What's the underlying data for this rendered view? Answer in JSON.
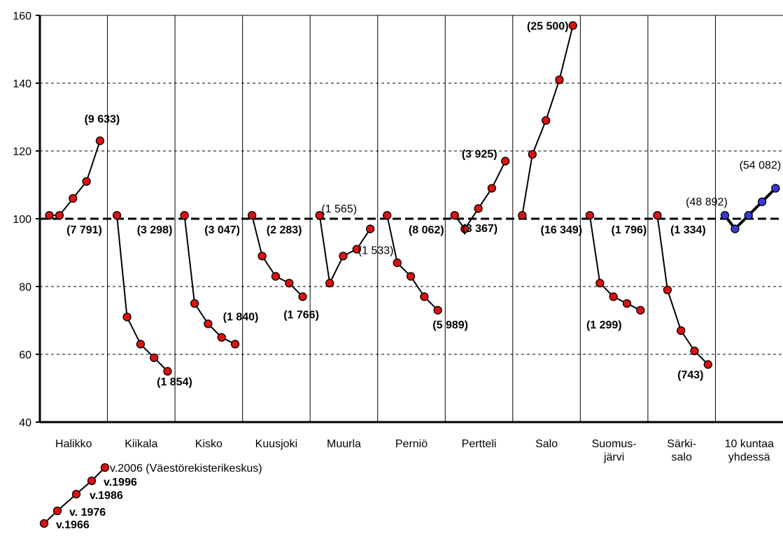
{
  "chart_data": {
    "type": "line",
    "title": "",
    "xlabel": "",
    "ylabel": "",
    "ylim": [
      40,
      160
    ],
    "yticks": [
      40,
      60,
      80,
      100,
      120,
      140,
      160
    ],
    "grid": "horizontal dashed",
    "reference_line": 100,
    "colors": {
      "point": "#dd1111",
      "point_total": "#3a3ad8",
      "line": "#000000",
      "grid": "#000000"
    },
    "x_axis_years": [
      "1966",
      "1976",
      "1986",
      "1996",
      "2006"
    ],
    "categories": [
      {
        "name": "Halikko",
        "values": [
          101,
          101,
          106,
          111,
          123
        ],
        "labels": [
          {
            "text": "(7 791)",
            "bold": true,
            "at": "start"
          },
          {
            "text": "(9 633)",
            "bold": true,
            "at": "end"
          }
        ]
      },
      {
        "name": "Kiikala",
        "values": [
          101,
          71,
          63,
          59,
          55
        ],
        "labels": [
          {
            "text": "(3 298)",
            "bold": true,
            "at": "start"
          },
          {
            "text": "(1 854)",
            "bold": true,
            "at": "end"
          }
        ]
      },
      {
        "name": "Kisko",
        "values": [
          101,
          75,
          69,
          65,
          63
        ],
        "labels": [
          {
            "text": "(3 047)",
            "bold": true,
            "at": "start"
          },
          {
            "text": "(1 840)",
            "bold": true,
            "at": "end"
          }
        ]
      },
      {
        "name": "Kuusjoki",
        "values": [
          101,
          89,
          83,
          81,
          77
        ],
        "labels": [
          {
            "text": "(2 283)",
            "bold": true,
            "at": "start"
          },
          {
            "text": "(1 766)",
            "bold": true,
            "at": "end"
          }
        ]
      },
      {
        "name": "Muurla",
        "values": [
          101,
          81,
          89,
          91,
          97
        ],
        "labels": [
          {
            "text": "(1 565)",
            "bold": false,
            "at": "start"
          },
          {
            "text": "(1 533)",
            "bold": false,
            "at": "end"
          }
        ]
      },
      {
        "name": "Perniö",
        "values": [
          101,
          87,
          83,
          77,
          73
        ],
        "labels": [
          {
            "text": "(8 062)",
            "bold": true,
            "at": "start"
          },
          {
            "text": "(5 989)",
            "bold": true,
            "at": "end"
          }
        ]
      },
      {
        "name": "Pertteli",
        "values": [
          101,
          97,
          103,
          109,
          117
        ],
        "labels": [
          {
            "text": "(3 367)",
            "bold": true,
            "at": "start"
          },
          {
            "text": "(3 925)",
            "bold": true,
            "at": "end"
          }
        ]
      },
      {
        "name": "Salo",
        "values": [
          101,
          119,
          129,
          141,
          157
        ],
        "labels": [
          {
            "text": "(16 349)",
            "bold": true,
            "at": "start"
          },
          {
            "text": "(25 500)",
            "bold": true,
            "at": "end"
          }
        ]
      },
      {
        "name": "Suomus-\njärvi",
        "values": [
          101,
          81,
          77,
          75,
          73
        ],
        "labels": [
          {
            "text": "(1 796)",
            "bold": true,
            "at": "start"
          },
          {
            "text": "(1 299)",
            "bold": true,
            "at": "end"
          }
        ]
      },
      {
        "name": "Särki-\nsalo",
        "values": [
          101,
          79,
          67,
          61,
          57
        ],
        "labels": [
          {
            "text": "(1 334)",
            "bold": true,
            "at": "start"
          },
          {
            "text": "(743)",
            "bold": true,
            "at": "end"
          }
        ]
      },
      {
        "name": "10 kuntaa\nyhdessä",
        "values": [
          101,
          97,
          101,
          105,
          109
        ],
        "total": true,
        "labels": [
          {
            "text": "(48 892)",
            "bold": false,
            "at": "start"
          },
          {
            "text": "(54 082)",
            "bold": false,
            "at": "end"
          }
        ]
      }
    ],
    "legend": [
      {
        "text": "v.1966",
        "bold": true
      },
      {
        "text": "v. 1976",
        "bold": true
      },
      {
        "text": "v.1986",
        "bold": true
      },
      {
        "text": "v.1996",
        "bold": true
      },
      {
        "text": "v.2006 (Väestörekisterikeskus)",
        "bold": false
      }
    ]
  }
}
